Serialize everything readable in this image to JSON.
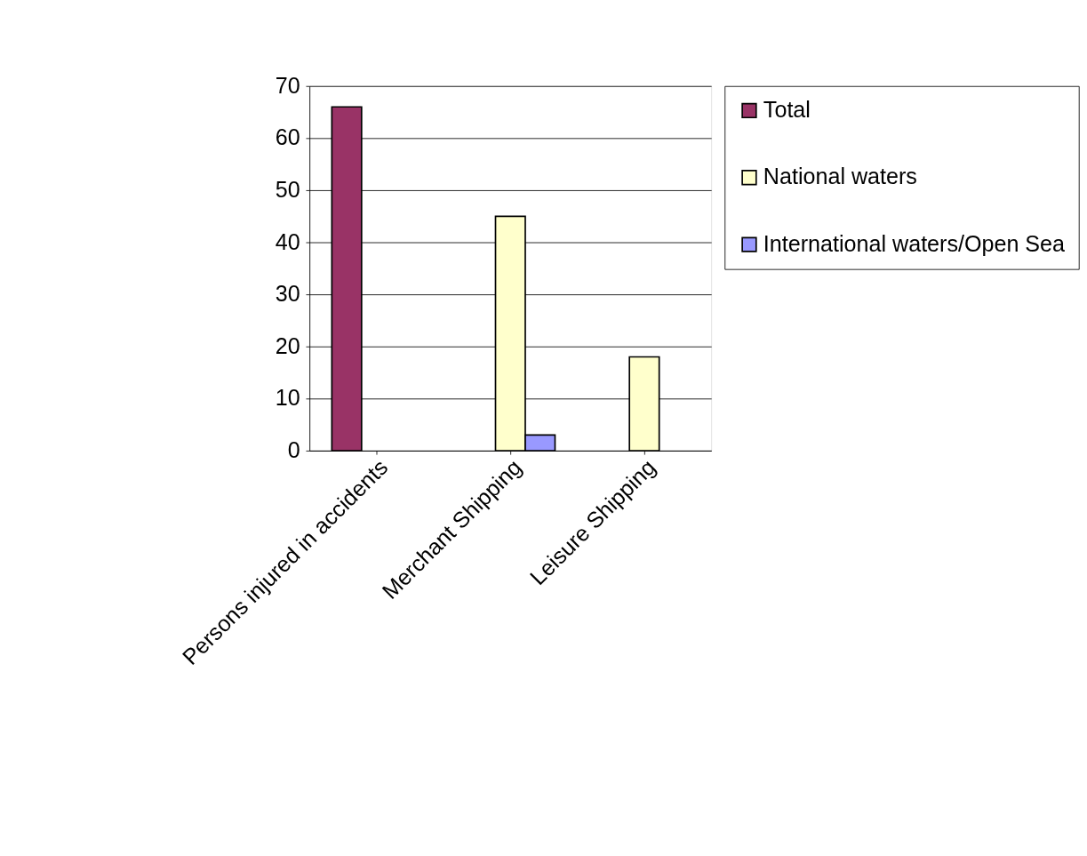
{
  "chart_data": {
    "type": "bar",
    "categories": [
      "Persons injured in accidents",
      "Merchant Shipping",
      "Leisure Shipping"
    ],
    "series": [
      {
        "name": "Total",
        "color": "#993366",
        "values": [
          66,
          null,
          null
        ]
      },
      {
        "name": "National waters",
        "color": "#ffffcc",
        "values": [
          null,
          45,
          18
        ]
      },
      {
        "name": "International waters/Open Sea",
        "color": "#9999ff",
        "values": [
          null,
          3,
          null
        ]
      }
    ],
    "ylim": [
      0,
      70
    ],
    "yticks": [
      0,
      10,
      20,
      30,
      40,
      50,
      60,
      70
    ],
    "grid": "y",
    "legend": "right"
  }
}
